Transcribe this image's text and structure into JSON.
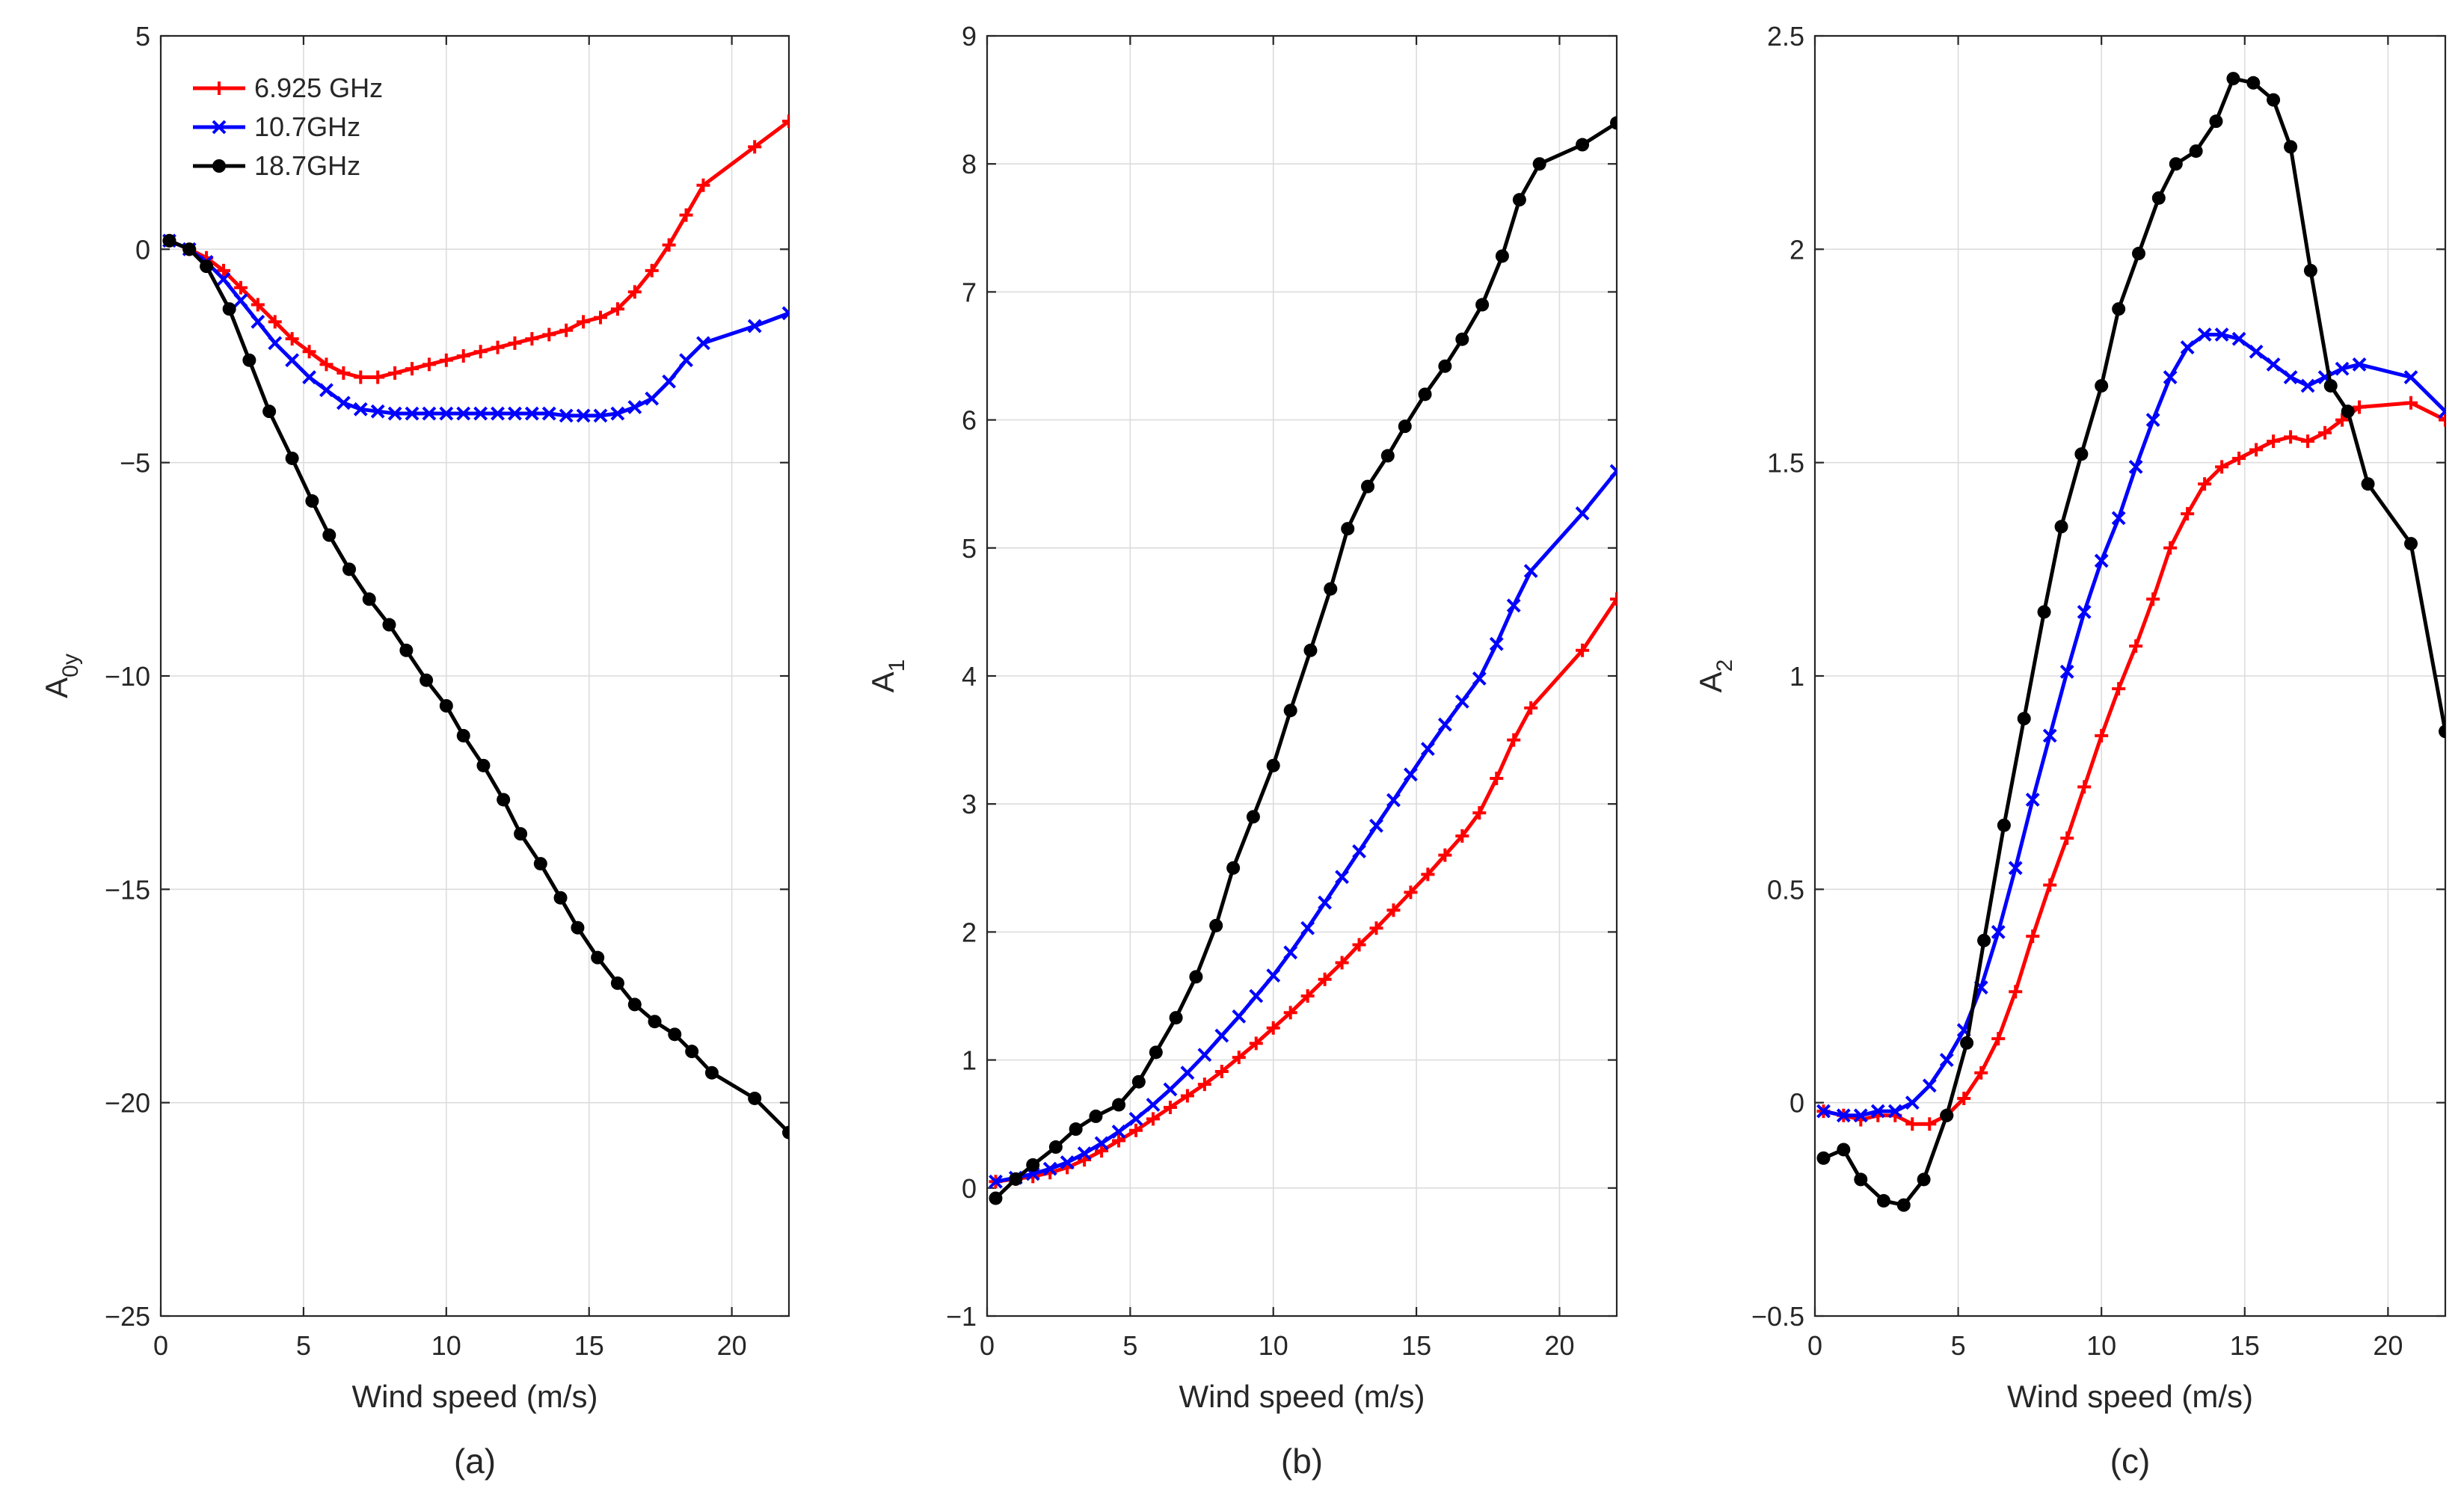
{
  "colors": {
    "red": "#ff0000",
    "blue": "#0000ff",
    "black": "#000000"
  },
  "legend": [
    {
      "name": "6.925 GHz",
      "color": "#ff0000",
      "marker": "plus"
    },
    {
      "name": "10.7GHz",
      "color": "#0000ff",
      "marker": "x"
    },
    {
      "name": "18.7GHz",
      "color": "#000000",
      "marker": "dot"
    }
  ],
  "chart_data": [
    {
      "type": "line",
      "panel_label": "(a)",
      "xlabel": "Wind speed (m/s)",
      "ylabel": "A",
      "ylabel_sub": "0y",
      "xlim": [
        0,
        22
      ],
      "ylim": [
        -25,
        5
      ],
      "xticks": [
        0,
        5,
        10,
        15,
        20
      ],
      "yticks": [
        5,
        0,
        -5,
        -10,
        -15,
        -20,
        -25
      ],
      "ytick_labels": [
        "5",
        "0",
        "−5",
        "−10",
        "−15",
        "−20",
        "−25"
      ],
      "xtick_labels": [
        "0",
        "5",
        "10",
        "15",
        "20"
      ],
      "grid": true,
      "legend_position": "top-left",
      "series": [
        {
          "name": "6.925 GHz",
          "color": "#ff0000",
          "marker": "plus",
          "x": [
            0.3,
            1.0,
            1.6,
            2.2,
            2.8,
            3.4,
            4.0,
            4.6,
            5.2,
            5.8,
            6.4,
            7.0,
            7.6,
            8.2,
            8.8,
            9.4,
            10.0,
            10.6,
            11.2,
            11.8,
            12.4,
            13.0,
            13.6,
            14.2,
            14.8,
            15.4,
            16.0,
            16.6,
            17.2,
            17.8,
            18.4,
            19.0,
            20.8,
            22.0
          ],
          "y": [
            0.2,
            0.0,
            -0.2,
            -0.5,
            -0.9,
            -1.3,
            -1.7,
            -2.1,
            -2.4,
            -2.7,
            -2.9,
            -3.0,
            -3.0,
            -2.9,
            -2.8,
            -2.7,
            -2.6,
            -2.5,
            -2.4,
            -2.3,
            -2.2,
            -2.1,
            -2.0,
            -1.9,
            -1.7,
            -1.6,
            -1.4,
            -1.0,
            -0.5,
            0.1,
            0.8,
            1.5,
            2.4,
            3.0
          ]
        },
        {
          "name": "10.7GHz",
          "color": "#0000ff",
          "marker": "x",
          "x": [
            0.3,
            1.0,
            1.6,
            2.2,
            2.8,
            3.4,
            4.0,
            4.6,
            5.2,
            5.8,
            6.4,
            7.0,
            7.6,
            8.2,
            8.8,
            9.4,
            10.0,
            10.6,
            11.2,
            11.8,
            12.4,
            13.0,
            13.6,
            14.2,
            14.8,
            15.4,
            16.0,
            16.6,
            17.2,
            17.8,
            18.4,
            19.0,
            20.8,
            22.0
          ],
          "y": [
            0.2,
            0.0,
            -0.3,
            -0.7,
            -1.2,
            -1.7,
            -2.2,
            -2.6,
            -3.0,
            -3.3,
            -3.6,
            -3.75,
            -3.8,
            -3.85,
            -3.85,
            -3.85,
            -3.85,
            -3.85,
            -3.85,
            -3.85,
            -3.85,
            -3.85,
            -3.85,
            -3.9,
            -3.9,
            -3.9,
            -3.85,
            -3.7,
            -3.5,
            -3.1,
            -2.6,
            -2.2,
            -1.8,
            -1.5
          ]
        },
        {
          "name": "18.7GHz",
          "color": "#000000",
          "marker": "dot",
          "x": [
            0.3,
            1.0,
            1.6,
            2.4,
            3.1,
            3.8,
            4.6,
            5.3,
            5.9,
            6.6,
            7.3,
            8.0,
            8.6,
            9.3,
            10.0,
            10.6,
            11.3,
            12.0,
            12.6,
            13.3,
            14.0,
            14.6,
            15.3,
            16.0,
            16.6,
            17.3,
            18.0,
            18.6,
            19.3,
            20.8,
            22.0
          ],
          "y": [
            0.2,
            0.0,
            -0.4,
            -1.4,
            -2.6,
            -3.8,
            -4.9,
            -5.9,
            -6.7,
            -7.5,
            -8.2,
            -8.8,
            -9.4,
            -10.1,
            -10.7,
            -11.4,
            -12.1,
            -12.9,
            -13.7,
            -14.4,
            -15.2,
            -15.9,
            -16.6,
            -17.2,
            -17.7,
            -18.1,
            -18.4,
            -18.8,
            -19.3,
            -19.9,
            -20.7
          ]
        }
      ]
    },
    {
      "type": "line",
      "panel_label": "(b)",
      "xlabel": "Wind speed (m/s)",
      "ylabel": "A",
      "ylabel_sub": "1",
      "xlim": [
        0,
        22
      ],
      "ylim": [
        -1,
        9
      ],
      "xticks": [
        0,
        5,
        10,
        15,
        20
      ],
      "yticks": [
        9,
        8,
        7,
        6,
        5,
        4,
        3,
        2,
        1,
        0,
        -1
      ],
      "ytick_labels": [
        "9",
        "8",
        "7",
        "6",
        "5",
        "4",
        "3",
        "2",
        "1",
        "0",
        "−1"
      ],
      "xtick_labels": [
        "0",
        "5",
        "10",
        "15",
        "20"
      ],
      "grid": true,
      "series": [
        {
          "name": "6.925 GHz",
          "color": "#ff0000",
          "marker": "plus",
          "x": [
            0.3,
            1.0,
            1.6,
            2.2,
            2.8,
            3.4,
            4.0,
            4.6,
            5.2,
            5.8,
            6.4,
            7.0,
            7.6,
            8.2,
            8.8,
            9.4,
            10.0,
            10.6,
            11.2,
            11.8,
            12.4,
            13.0,
            13.6,
            14.2,
            14.8,
            15.4,
            16.0,
            16.6,
            17.2,
            17.8,
            18.4,
            19.0,
            20.8,
            22.0
          ],
          "y": [
            0.05,
            0.07,
            0.09,
            0.12,
            0.16,
            0.22,
            0.29,
            0.37,
            0.45,
            0.54,
            0.63,
            0.72,
            0.81,
            0.91,
            1.02,
            1.13,
            1.25,
            1.37,
            1.5,
            1.63,
            1.76,
            1.9,
            2.03,
            2.17,
            2.31,
            2.45,
            2.6,
            2.75,
            2.93,
            3.2,
            3.5,
            3.75,
            4.2,
            4.6
          ]
        },
        {
          "name": "10.7GHz",
          "color": "#0000ff",
          "marker": "x",
          "x": [
            0.3,
            1.0,
            1.6,
            2.2,
            2.8,
            3.4,
            4.0,
            4.6,
            5.2,
            5.8,
            6.4,
            7.0,
            7.6,
            8.2,
            8.8,
            9.4,
            10.0,
            10.6,
            11.2,
            11.8,
            12.4,
            13.0,
            13.6,
            14.2,
            14.8,
            15.4,
            16.0,
            16.6,
            17.2,
            17.8,
            18.4,
            19.0,
            20.8,
            22.0
          ],
          "y": [
            0.05,
            0.08,
            0.11,
            0.15,
            0.2,
            0.27,
            0.35,
            0.44,
            0.54,
            0.65,
            0.77,
            0.9,
            1.04,
            1.19,
            1.34,
            1.5,
            1.66,
            1.84,
            2.03,
            2.23,
            2.43,
            2.63,
            2.83,
            3.03,
            3.23,
            3.43,
            3.62,
            3.8,
            3.98,
            4.25,
            4.55,
            4.82,
            5.27,
            5.6
          ]
        },
        {
          "name": "18.7GHz",
          "color": "#000000",
          "marker": "dot",
          "x": [
            0.3,
            1.0,
            1.6,
            2.4,
            3.1,
            3.8,
            4.6,
            5.3,
            5.9,
            6.6,
            7.3,
            8.0,
            8.6,
            9.3,
            10.0,
            10.6,
            11.3,
            12.0,
            12.6,
            13.3,
            14.0,
            14.6,
            15.3,
            16.0,
            16.6,
            17.3,
            18.0,
            18.6,
            19.3,
            20.8,
            22.0
          ],
          "y": [
            -0.08,
            0.07,
            0.18,
            0.32,
            0.46,
            0.56,
            0.65,
            0.83,
            1.06,
            1.33,
            1.65,
            2.05,
            2.5,
            2.9,
            3.3,
            3.73,
            4.2,
            4.68,
            5.15,
            5.48,
            5.72,
            5.95,
            6.2,
            6.42,
            6.63,
            6.9,
            7.28,
            7.72,
            8.0,
            8.15,
            8.32
          ]
        }
      ]
    },
    {
      "type": "line",
      "panel_label": "(c)",
      "xlabel": "Wind speed (m/s)",
      "ylabel": "A",
      "ylabel_sub": "2",
      "xlim": [
        0,
        22
      ],
      "ylim": [
        -0.5,
        2.5
      ],
      "xticks": [
        0,
        5,
        10,
        15,
        20
      ],
      "yticks": [
        2.5,
        2,
        1.5,
        1,
        0.5,
        0,
        -0.5
      ],
      "ytick_labels": [
        "2.5",
        "2",
        "1.5",
        "1",
        "0.5",
        "0",
        "−0.5"
      ],
      "xtick_labels": [
        "0",
        "5",
        "10",
        "15",
        "20"
      ],
      "grid": true,
      "series": [
        {
          "name": "6.925 GHz",
          "color": "#ff0000",
          "marker": "plus",
          "x": [
            0.3,
            1.0,
            1.6,
            2.2,
            2.8,
            3.4,
            4.0,
            4.6,
            5.2,
            5.8,
            6.4,
            7.0,
            7.6,
            8.2,
            8.8,
            9.4,
            10.0,
            10.6,
            11.2,
            11.8,
            12.4,
            13.0,
            13.6,
            14.2,
            14.8,
            15.4,
            16.0,
            16.6,
            17.2,
            17.8,
            18.4,
            19.0,
            20.8,
            22.0
          ],
          "y": [
            -0.02,
            -0.03,
            -0.04,
            -0.03,
            -0.03,
            -0.05,
            -0.05,
            -0.03,
            0.01,
            0.07,
            0.15,
            0.26,
            0.39,
            0.51,
            0.62,
            0.74,
            0.86,
            0.97,
            1.07,
            1.18,
            1.3,
            1.38,
            1.45,
            1.49,
            1.51,
            1.53,
            1.55,
            1.56,
            1.55,
            1.57,
            1.6,
            1.63,
            1.64,
            1.6
          ]
        },
        {
          "name": "10.7GHz",
          "color": "#0000ff",
          "marker": "x",
          "x": [
            0.3,
            1.0,
            1.6,
            2.2,
            2.8,
            3.4,
            4.0,
            4.6,
            5.2,
            5.8,
            6.4,
            7.0,
            7.6,
            8.2,
            8.8,
            9.4,
            10.0,
            10.6,
            11.2,
            11.8,
            12.4,
            13.0,
            13.6,
            14.2,
            14.8,
            15.4,
            16.0,
            16.6,
            17.2,
            17.8,
            18.4,
            19.0,
            20.8,
            22.0
          ],
          "y": [
            -0.02,
            -0.03,
            -0.03,
            -0.02,
            -0.02,
            0.0,
            0.04,
            0.1,
            0.17,
            0.27,
            0.4,
            0.55,
            0.71,
            0.86,
            1.01,
            1.15,
            1.27,
            1.37,
            1.49,
            1.6,
            1.7,
            1.77,
            1.8,
            1.8,
            1.79,
            1.76,
            1.73,
            1.7,
            1.68,
            1.7,
            1.72,
            1.73,
            1.7,
            1.62
          ]
        },
        {
          "name": "18.7GHz",
          "color": "#000000",
          "marker": "dot",
          "x": [
            0.3,
            1.0,
            1.6,
            2.4,
            3.1,
            3.8,
            4.6,
            5.3,
            5.9,
            6.6,
            7.3,
            8.0,
            8.6,
            9.3,
            10.0,
            10.6,
            11.3,
            12.0,
            12.6,
            13.3,
            14.0,
            14.6,
            15.3,
            16.0,
            16.6,
            17.3,
            18.0,
            18.6,
            19.3,
            20.8,
            22.0
          ],
          "y": [
            -0.13,
            -0.11,
            -0.18,
            -0.23,
            -0.24,
            -0.18,
            -0.03,
            0.14,
            0.38,
            0.65,
            0.9,
            1.15,
            1.35,
            1.52,
            1.68,
            1.86,
            1.99,
            2.12,
            2.2,
            2.23,
            2.3,
            2.4,
            2.39,
            2.35,
            2.24,
            1.95,
            1.68,
            1.62,
            1.45,
            1.31,
            0.87
          ]
        }
      ]
    }
  ]
}
